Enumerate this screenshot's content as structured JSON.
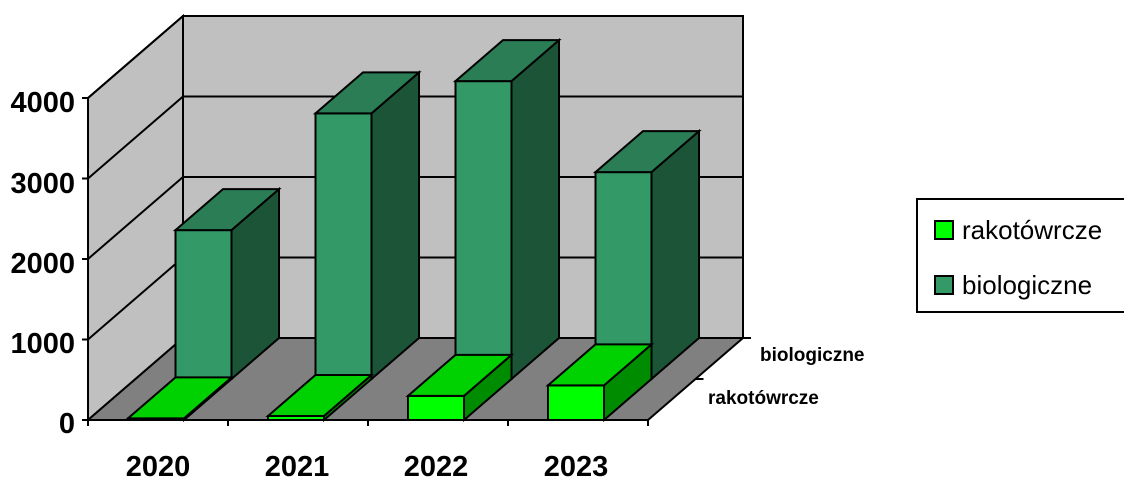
{
  "chart_data": {
    "type": "bar",
    "categories": [
      "2020",
      "2021",
      "2022",
      "2023"
    ],
    "series": [
      {
        "name": "rakotówrcze",
        "values": [
          20,
          50,
          300,
          430
        ],
        "color": "#00FF00"
      },
      {
        "name": "biologiczne",
        "values": [
          1850,
          3300,
          3700,
          2570
        ],
        "color": "#339966"
      }
    ],
    "depth_labels": [
      "biologiczne",
      "rakotówrcze"
    ],
    "yticks": [
      "0",
      "1000",
      "2000",
      "3000",
      "4000"
    ],
    "ylim": [
      0,
      4000
    ],
    "grid": true,
    "legend": "right",
    "title": "",
    "xlabel": "",
    "ylabel": ""
  }
}
